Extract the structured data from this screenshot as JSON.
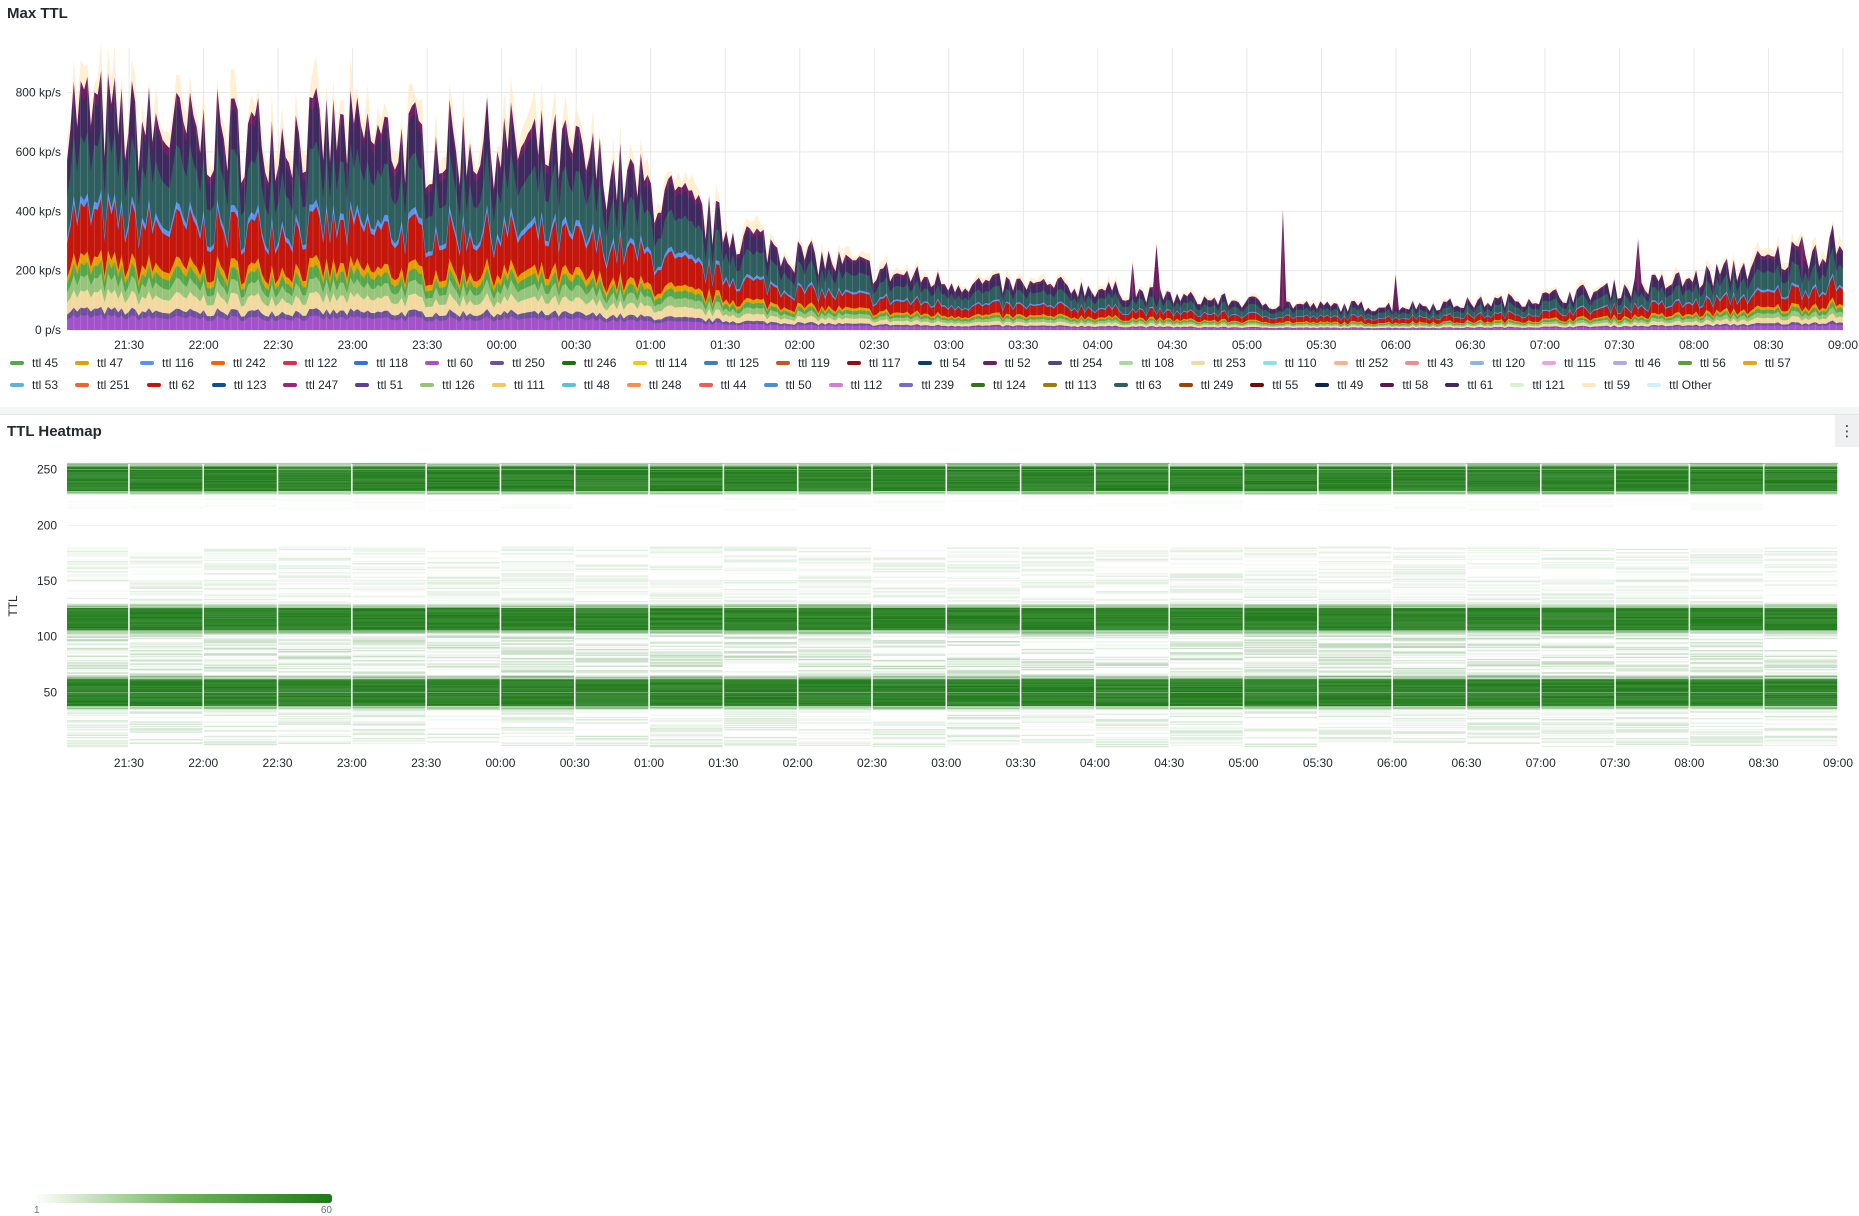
{
  "top_panel": {
    "title": "Max TTL"
  },
  "bottom_panel": {
    "title": "TTL Heatmap",
    "menu_icon": "⋮",
    "y_axis_label": "TTL"
  },
  "color_scale": {
    "min_label": "1",
    "max_label": "60",
    "low_color": "#ffffff",
    "high_color": "#1e7a18"
  },
  "chart_data": [
    {
      "type": "area",
      "stacked": true,
      "title": "Max TTL",
      "x_ticks": [
        "21:30",
        "22:00",
        "22:30",
        "23:00",
        "23:30",
        "00:00",
        "00:30",
        "01:00",
        "01:30",
        "02:00",
        "02:30",
        "03:00",
        "03:30",
        "04:00",
        "04:30",
        "05:00",
        "05:30",
        "06:00",
        "06:30",
        "07:00",
        "07:30",
        "08:00",
        "08:30",
        "09:00"
      ],
      "y_ticks": [
        "0 p/s",
        "200 kp/s",
        "400 kp/s",
        "600 kp/s",
        "800 kp/s"
      ],
      "ylim": [
        0,
        950000
      ],
      "grid": true,
      "legend_position": "bottom",
      "total_envelope": {
        "x": [
          "21:05",
          "21:30",
          "22:00",
          "22:30",
          "23:00",
          "23:30",
          "00:00",
          "00:30",
          "01:00",
          "01:30",
          "02:00",
          "02:30",
          "03:00",
          "03:30",
          "04:00",
          "04:30",
          "05:00",
          "05:30",
          "06:00",
          "06:30",
          "07:00",
          "07:30",
          "08:00",
          "08:30",
          "09:00"
        ],
        "y": [
          760000,
          690000,
          650000,
          660000,
          650000,
          620000,
          630000,
          580000,
          470000,
          340000,
          250000,
          200000,
          160000,
          150000,
          140000,
          110000,
          95000,
          80000,
          80000,
          90000,
          110000,
          140000,
          170000,
          230000,
          300000
        ]
      },
      "series": [
        {
          "name": "ttl 45",
          "color": "#56a64b"
        },
        {
          "name": "ttl 47",
          "color": "#e0a100"
        },
        {
          "name": "ttl 116",
          "color": "#5794f2"
        },
        {
          "name": "ttl 242",
          "color": "#fa6400"
        },
        {
          "name": "ttl 122",
          "color": "#e02f44"
        },
        {
          "name": "ttl 118",
          "color": "#3274d9"
        },
        {
          "name": "ttl 60",
          "color": "#a352cc"
        },
        {
          "name": "ttl 250",
          "color": "#6e4fa0"
        },
        {
          "name": "ttl 246",
          "color": "#19730e"
        },
        {
          "name": "ttl 114",
          "color": "#f2cc0c"
        },
        {
          "name": "ttl 125",
          "color": "#3f7fc0"
        },
        {
          "name": "ttl 119",
          "color": "#c4571a"
        },
        {
          "name": "ttl 117",
          "color": "#8f0f0f"
        },
        {
          "name": "ttl 54",
          "color": "#0a3c6e"
        },
        {
          "name": "ttl 52",
          "color": "#6d1f62"
        },
        {
          "name": "ttl 254",
          "color": "#584477"
        },
        {
          "name": "ttl 108",
          "color": "#a8d9a0"
        },
        {
          "name": "ttl 253",
          "color": "#f2d9a0"
        },
        {
          "name": "ttl 110",
          "color": "#8ae0f0"
        },
        {
          "name": "ttl 252",
          "color": "#ffb08a"
        },
        {
          "name": "ttl 43",
          "color": "#f28b8b"
        },
        {
          "name": "ttl 120",
          "color": "#8ab8e0"
        },
        {
          "name": "ttl 115",
          "color": "#e8a3e0"
        },
        {
          "name": "ttl 46",
          "color": "#b4a7e6"
        },
        {
          "name": "ttl 56",
          "color": "#5a9e3a"
        },
        {
          "name": "ttl 57",
          "color": "#e8a317"
        },
        {
          "name": "ttl 53",
          "color": "#5cb4d9"
        },
        {
          "name": "ttl 251",
          "color": "#f2622e"
        },
        {
          "name": "ttl 62",
          "color": "#c4160a"
        },
        {
          "name": "ttl 123",
          "color": "#0a4fa0"
        },
        {
          "name": "ttl 247",
          "color": "#a0237a"
        },
        {
          "name": "ttl 51",
          "color": "#5b3e9c"
        },
        {
          "name": "ttl 126",
          "color": "#96c47a"
        },
        {
          "name": "ttl 111",
          "color": "#f2c85c"
        },
        {
          "name": "ttl 48",
          "color": "#5cc4d9"
        },
        {
          "name": "ttl 248",
          "color": "#ff8c4a"
        },
        {
          "name": "ttl 44",
          "color": "#f25a5a"
        },
        {
          "name": "ttl 50",
          "color": "#4a90d9"
        },
        {
          "name": "ttl 112",
          "color": "#d97ad9"
        },
        {
          "name": "ttl 239",
          "color": "#7a6ad0"
        },
        {
          "name": "ttl 124",
          "color": "#3a6e1f"
        },
        {
          "name": "ttl 113",
          "color": "#a07a0a"
        },
        {
          "name": "ttl 63",
          "color": "#2f5e5e"
        },
        {
          "name": "ttl 249",
          "color": "#a0400a"
        },
        {
          "name": "ttl 55",
          "color": "#6e0a0a"
        },
        {
          "name": "ttl 49",
          "color": "#0a2550"
        },
        {
          "name": "ttl 58",
          "color": "#5e1650"
        },
        {
          "name": "ttl 61",
          "color": "#3e2a5e"
        },
        {
          "name": "ttl 121",
          "color": "#d8f2d0"
        },
        {
          "name": "ttl 59",
          "color": "#ffe8c0"
        },
        {
          "name": "ttl Other",
          "color": "#cdf0fa"
        }
      ]
    },
    {
      "type": "heatmap",
      "title": "TTL Heatmap",
      "ylabel": "TTL",
      "x_ticks": [
        "21:30",
        "22:00",
        "22:30",
        "23:00",
        "23:30",
        "00:00",
        "00:30",
        "01:00",
        "01:30",
        "02:00",
        "02:30",
        "03:00",
        "03:30",
        "04:00",
        "04:30",
        "05:00",
        "05:30",
        "06:00",
        "06:30",
        "07:00",
        "07:30",
        "08:00",
        "08:30",
        "09:00"
      ],
      "y_ticks": [
        50,
        100,
        150,
        200,
        250
      ],
      "ylim": [
        0,
        255
      ],
      "color_range": [
        1,
        60
      ],
      "dense_bands": [
        {
          "ttl_from": 35,
          "ttl_to": 64,
          "count": 60
        },
        {
          "ttl_from": 103,
          "ttl_to": 128,
          "count": 60
        },
        {
          "ttl_from": 228,
          "ttl_to": 255,
          "count": 60
        }
      ],
      "sparse_bands": [
        {
          "ttl_from": 1,
          "ttl_to": 34,
          "count": 8
        },
        {
          "ttl_from": 65,
          "ttl_to": 102,
          "count": 12
        },
        {
          "ttl_from": 129,
          "ttl_to": 180,
          "count": 6
        },
        {
          "ttl_from": 213,
          "ttl_to": 227,
          "count": 2
        }
      ]
    }
  ]
}
